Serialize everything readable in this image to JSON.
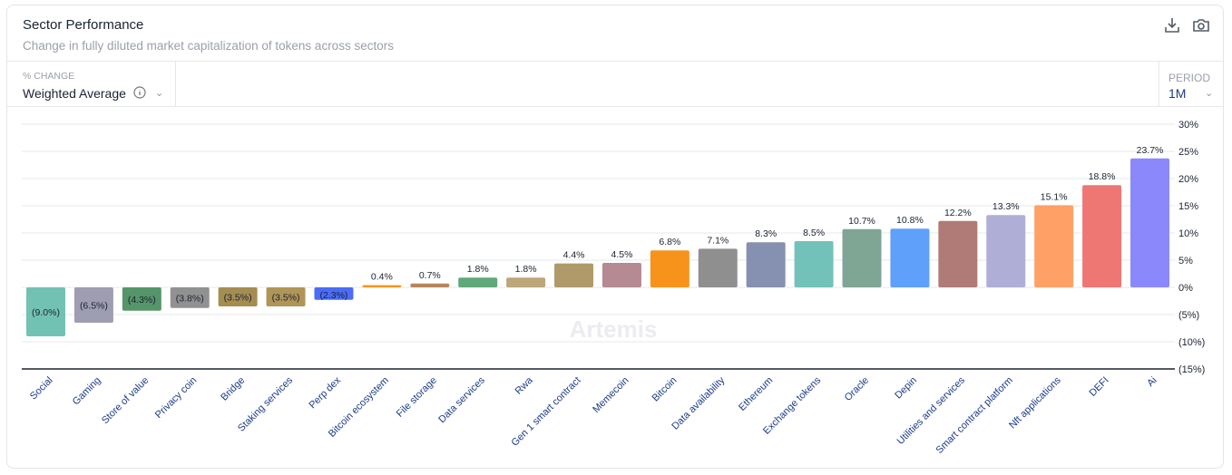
{
  "header": {
    "title": "Sector Performance",
    "subtitle": "Change in fully diluted market capitalization of tokens across sectors",
    "icons": [
      "download-icon",
      "camera-icon"
    ]
  },
  "controls": {
    "metric_label": "% CHANGE",
    "metric_value": "Weighted Average",
    "period_label": "PERIOD",
    "period_value": "1M"
  },
  "watermark": "Artemis",
  "chart_data": {
    "type": "bar",
    "title": "",
    "xlabel": "",
    "ylabel": "",
    "ylim": [
      -15,
      30
    ],
    "yticks": [
      30,
      25,
      20,
      15,
      10,
      5,
      0,
      -5,
      -10,
      -15
    ],
    "ytick_labels": [
      "30%",
      "25%",
      "20%",
      "15%",
      "10%",
      "5%",
      "0%",
      "(5%)",
      "(10%)",
      "(15%)"
    ],
    "grid": true,
    "categories": [
      "Social",
      "Gaming",
      "Store of value",
      "Privacy coin",
      "Bridge",
      "Staking services",
      "Perp dex",
      "Bitcoin ecosystem",
      "File storage",
      "Data services",
      "Rwa",
      "Gen 1 smart contract",
      "Memecoin",
      "Bitcoin",
      "Data availability",
      "Ethereum",
      "Exchange tokens",
      "Oracle",
      "Depin",
      "Utilities and services",
      "Smart contract platform",
      "Nft applications",
      "DEFI",
      "Ai"
    ],
    "values": [
      -9.0,
      -6.5,
      -4.3,
      -3.8,
      -3.5,
      -3.5,
      -2.3,
      0.4,
      0.7,
      1.8,
      1.8,
      4.4,
      4.5,
      6.8,
      7.1,
      8.3,
      8.5,
      10.7,
      10.8,
      12.2,
      13.3,
      15.1,
      18.8,
      23.7
    ],
    "labels": [
      "(9.0%)",
      "(6.5%)",
      "(4.3%)",
      "(3.8%)",
      "(3.5%)",
      "(3.5%)",
      "(2.3%)",
      "0.4%",
      "0.7%",
      "1.8%",
      "1.8%",
      "4.4%",
      "4.5%",
      "6.8%",
      "7.1%",
      "8.3%",
      "8.5%",
      "10.7%",
      "10.8%",
      "12.2%",
      "13.3%",
      "15.1%",
      "18.8%",
      "23.7%"
    ],
    "colors": [
      "#72c2b3",
      "#9e9db1",
      "#55956a",
      "#919191",
      "#a58d52",
      "#b09558",
      "#4a6cf7",
      "#f7931a",
      "#b8865b",
      "#5ea87a",
      "#bca67a",
      "#b09a6a",
      "#b58a92",
      "#f7931a",
      "#8f8f8f",
      "#8690b0",
      "#72c2b9",
      "#7fa595",
      "#5ea0fa",
      "#b07b76",
      "#aeaed6",
      "#ffa066",
      "#ee7773",
      "#8b88fb"
    ]
  }
}
